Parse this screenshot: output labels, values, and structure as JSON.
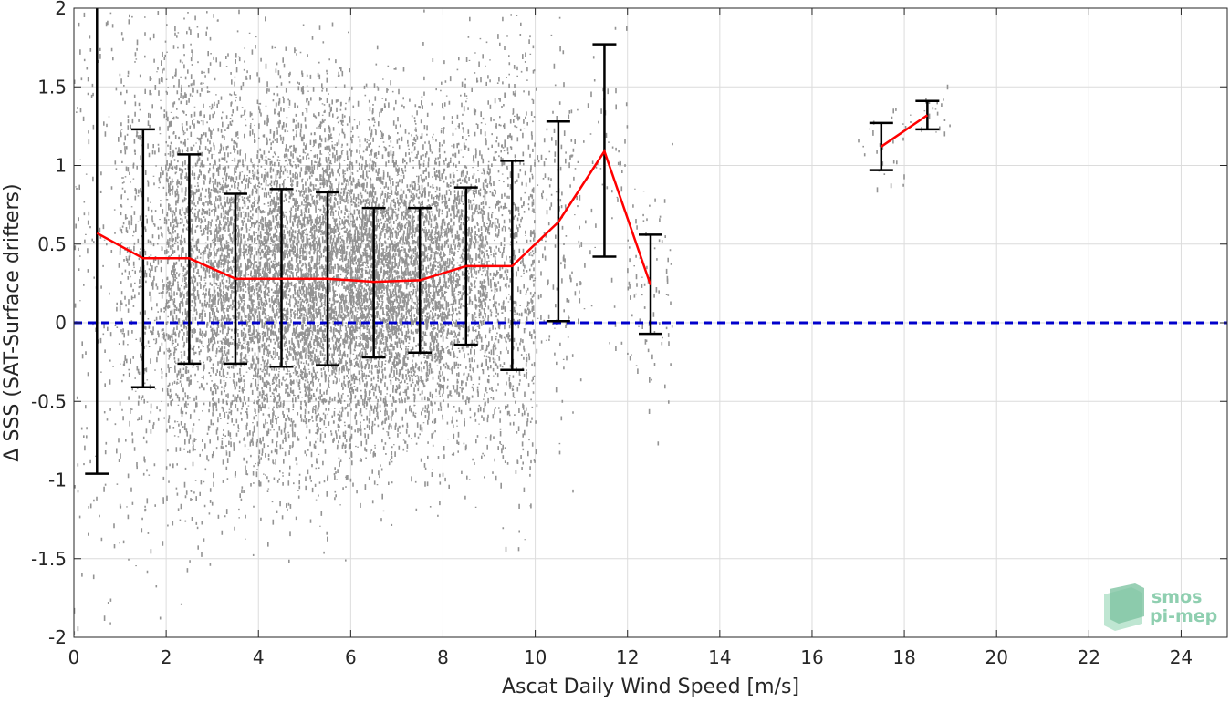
{
  "chart_data": {
    "type": "scatter",
    "xlabel": "Ascat Daily Wind Speed [m/s]",
    "ylabel": "Δ SSS (SAT-Surface drifters)",
    "xlim": [
      0,
      25
    ],
    "ylim": [
      -2,
      2
    ],
    "xticks": [
      0,
      2,
      4,
      6,
      8,
      10,
      12,
      14,
      16,
      18,
      20,
      22,
      24
    ],
    "yticks": [
      -2,
      -1.5,
      -1,
      -0.5,
      0,
      0.5,
      1,
      1.5,
      2
    ],
    "grid": true,
    "reference_line": {
      "y": 0,
      "color": "#0000cc",
      "style": "dashed"
    },
    "colors": {
      "scatter": "#808080",
      "mean_line": "#ff0000",
      "error_bars": "#000000"
    },
    "bins": [
      {
        "x": 0.5,
        "mean": 0.57,
        "low": -0.96,
        "high": 2.0
      },
      {
        "x": 1.5,
        "mean": 0.41,
        "low": -0.41,
        "high": 1.23
      },
      {
        "x": 2.5,
        "mean": 0.41,
        "low": -0.26,
        "high": 1.07
      },
      {
        "x": 3.5,
        "mean": 0.28,
        "low": -0.26,
        "high": 0.82
      },
      {
        "x": 4.5,
        "mean": 0.28,
        "low": -0.28,
        "high": 0.85
      },
      {
        "x": 5.5,
        "mean": 0.28,
        "low": -0.27,
        "high": 0.83
      },
      {
        "x": 6.5,
        "mean": 0.26,
        "low": -0.22,
        "high": 0.73
      },
      {
        "x": 7.5,
        "mean": 0.27,
        "low": -0.19,
        "high": 0.73
      },
      {
        "x": 8.5,
        "mean": 0.36,
        "low": -0.14,
        "high": 0.86
      },
      {
        "x": 9.5,
        "mean": 0.36,
        "low": -0.3,
        "high": 1.03
      },
      {
        "x": 10.5,
        "mean": 0.64,
        "low": 0.01,
        "high": 1.28
      },
      {
        "x": 11.5,
        "mean": 1.09,
        "low": 0.42,
        "high": 1.77
      },
      {
        "x": 12.5,
        "mean": 0.24,
        "low": -0.07,
        "high": 0.56
      },
      {
        "x": 17.5,
        "mean": 1.12,
        "low": 0.97,
        "high": 1.27
      },
      {
        "x": 18.5,
        "mean": 1.32,
        "low": 1.23,
        "high": 1.41
      }
    ],
    "mean_line_segments": [
      [
        0.5,
        1.5,
        2.5,
        3.5,
        4.5,
        5.5,
        6.5,
        7.5,
        8.5,
        9.5,
        10.5,
        11.5,
        12.5
      ],
      [
        17.5,
        18.5
      ]
    ]
  },
  "logo": {
    "line1": "smos",
    "line2": "pi-mep"
  }
}
